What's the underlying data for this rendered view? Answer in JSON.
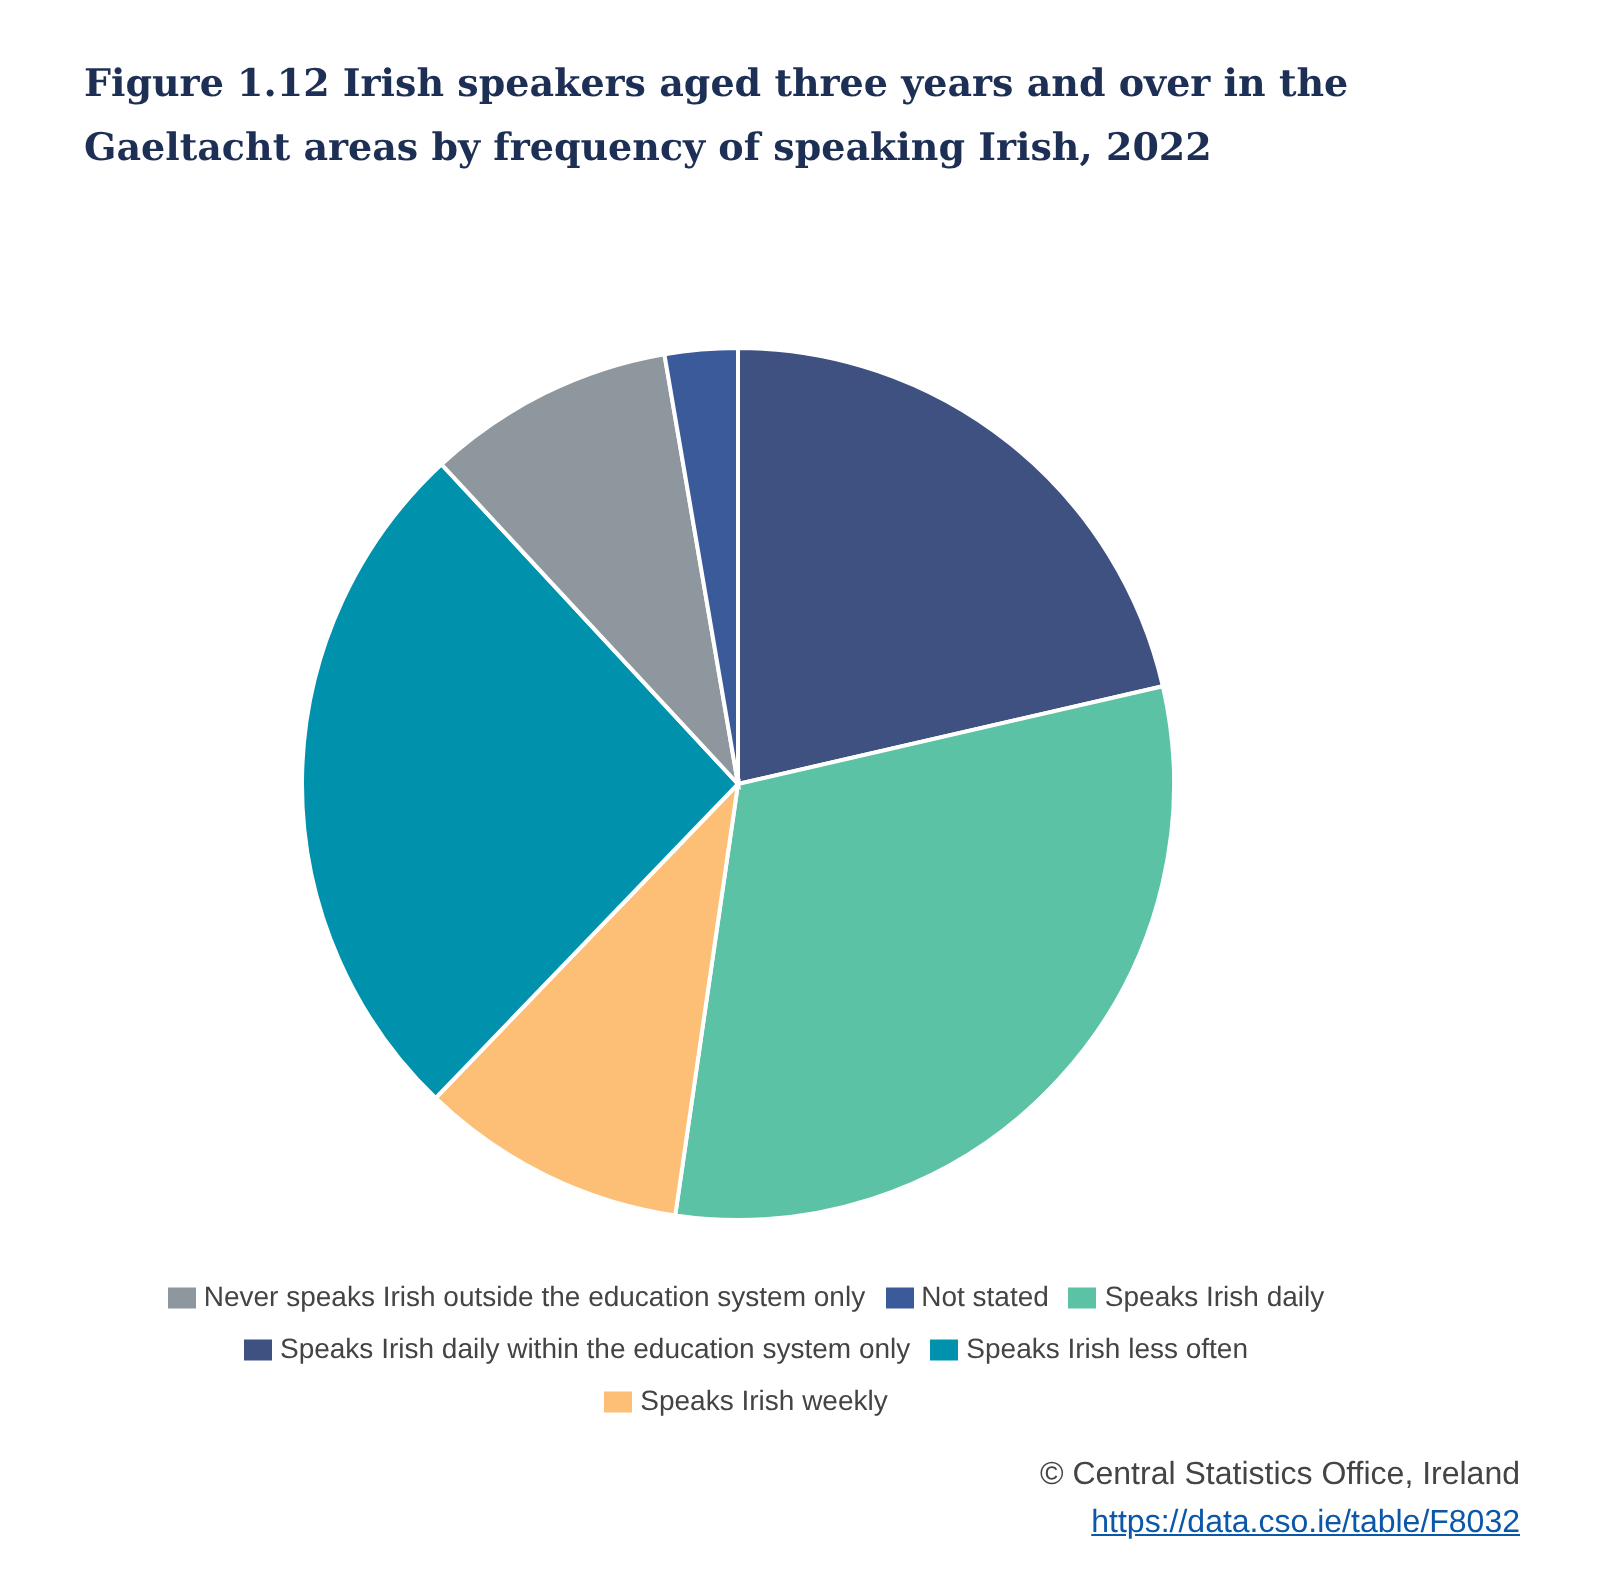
{
  "chart_data": {
    "type": "pie",
    "title": "Figure 1.12 Irish speakers aged three years and over in the Gaeltacht areas by frequency of speaking Irish, 2022",
    "categories": [
      "Speaks Irish daily within the education system only",
      "Speaks Irish daily",
      "Speaks Irish weekly",
      "Speaks Irish less often",
      "Never speaks Irish outside the education system only",
      "Not stated"
    ],
    "values": [
      21.4,
      30.9,
      9.9,
      25.9,
      9.2,
      2.7
    ],
    "colors": [
      "#3f5180",
      "#5bc2a5",
      "#fcbf75",
      "#0092ad",
      "#8f979e",
      "#3b5a9a"
    ],
    "legend": "bottom",
    "annotations": [
      "© Central Statistics Office, Ireland",
      "https://data.cso.ie/table/F8032"
    ]
  }
}
